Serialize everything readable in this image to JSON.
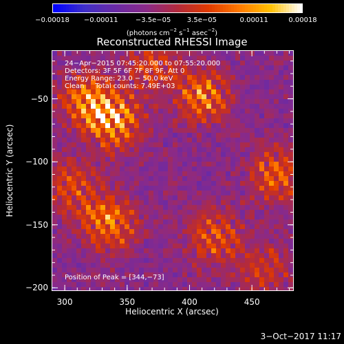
{
  "colorbar": {
    "tick_labels": [
      "−0.00018",
      "−0.00011",
      "−3.5e−05",
      "3.5e−05",
      "0.00011",
      "0.00018"
    ],
    "tick_values": [
      -0.00018,
      -0.00011,
      -3.5e-05,
      3.5e-05,
      0.00011,
      0.00018
    ],
    "range": [
      -0.00018,
      0.00018
    ],
    "units_main": "(photons cm",
    "units_exp1": "−2",
    "units_mid": " s",
    "units_exp2": "−1",
    "units_tail": " asec",
    "units_exp3": "−2",
    "units_close": ")",
    "colors": [
      "#0000ff",
      "#3f2fc8",
      "#6a2aa5",
      "#8a2a88",
      "#b32a3c",
      "#e03a00",
      "#ff7a00",
      "#ffc000",
      "#ffffff"
    ]
  },
  "chart_data": {
    "type": "heatmap",
    "title": "Reconstructed RHESSI Image",
    "xlabel": "Heliocentric X (arcsec)",
    "ylabel": "Heliocentric Y (arcsec)",
    "xlim": [
      290,
      483
    ],
    "ylim": [
      -202,
      -12
    ],
    "x_ticks": [
      300,
      350,
      400,
      450
    ],
    "x_tick_labels": [
      "300",
      "350",
      "400",
      "450"
    ],
    "y_ticks": [
      -50,
      -100,
      -150,
      -200
    ],
    "y_tick_labels": [
      "−50",
      "−100",
      "−150",
      "−200"
    ],
    "peak_position": [
      344,
      -73
    ],
    "hot_regions": [
      {
        "x": 340,
        "y": -68,
        "intensity": 1.0
      },
      {
        "x": 318,
        "y": -52,
        "intensity": 0.85
      },
      {
        "x": 335,
        "y": -148,
        "intensity": 0.9
      },
      {
        "x": 410,
        "y": -48,
        "intensity": 0.85
      },
      {
        "x": 420,
        "y": -160,
        "intensity": 0.7
      },
      {
        "x": 470,
        "y": -110,
        "intensity": 0.75
      },
      {
        "x": 305,
        "y": -120,
        "intensity": 0.6
      },
      {
        "x": 370,
        "y": -25,
        "intensity": 0.55
      },
      {
        "x": 460,
        "y": -185,
        "intensity": 0.5
      }
    ]
  },
  "info": {
    "line1": "24−Apr−2015 07:45:20.000 to 07:55:20.000",
    "line2": "Detectors: 3F 5F 6F 7F 8F 9F, Att 0",
    "line3": "Energy Range: 23.0 − 50.0 keV",
    "line4": "Clean     Total counts: 7.49E+03",
    "peak_label": "Position of Peak = [344,−73]"
  },
  "timestamp": "3−Oct−2017 11:17"
}
